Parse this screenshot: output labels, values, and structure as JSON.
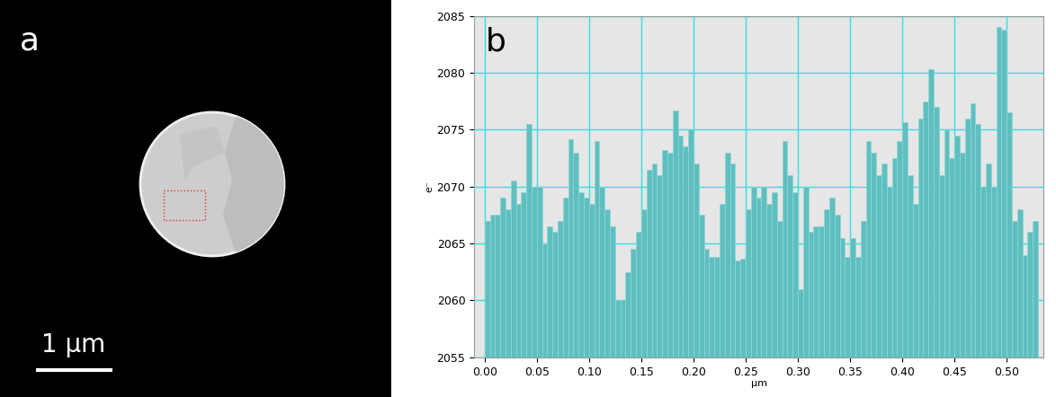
{
  "chart_data": [
    {
      "type": "image",
      "panel_label": "a",
      "scale_bar": "1 µm"
    },
    {
      "type": "histogram",
      "panel_label": "b",
      "x_label": "µm",
      "y_label": "e⁻",
      "bins": [
        0.0,
        0.005,
        0.01,
        0.015,
        0.02,
        0.025,
        0.03,
        0.035,
        0.04,
        0.045,
        0.05,
        0.055,
        0.06,
        0.065,
        0.07,
        0.075,
        0.08,
        0.085,
        0.09,
        0.095,
        0.1,
        0.105,
        0.11,
        0.115,
        0.12,
        0.125,
        0.13,
        0.135,
        0.14,
        0.145,
        0.15,
        0.155,
        0.16,
        0.165,
        0.17,
        0.175,
        0.18,
        0.185,
        0.19,
        0.195,
        0.2,
        0.205,
        0.21,
        0.215,
        0.22,
        0.225,
        0.23,
        0.235,
        0.24,
        0.245,
        0.25,
        0.255,
        0.26,
        0.265,
        0.27,
        0.275,
        0.28,
        0.285,
        0.29,
        0.295,
        0.3,
        0.305,
        0.31,
        0.315,
        0.32,
        0.325,
        0.33,
        0.335,
        0.34,
        0.345,
        0.35,
        0.355,
        0.36,
        0.365,
        0.37,
        0.375,
        0.38,
        0.385,
        0.39,
        0.395,
        0.4,
        0.405,
        0.41,
        0.415,
        0.42,
        0.425,
        0.43,
        0.435,
        0.44,
        0.445,
        0.45,
        0.455,
        0.46,
        0.465,
        0.47,
        0.475,
        0.48,
        0.485,
        0.49,
        0.495,
        0.5,
        0.505,
        0.51,
        0.515,
        0.52,
        0.525,
        0.53
      ],
      "values": [
        2067,
        2067.5,
        2067.5,
        2069,
        2068,
        2070.5,
        2068.5,
        2069.5,
        2075.5,
        2070,
        2070,
        2065,
        2066.5,
        2066,
        2067,
        2069,
        2074.2,
        2073,
        2069.5,
        2069,
        2068.5,
        2074,
        2070,
        2068,
        2066.5,
        2060,
        2060,
        2062.5,
        2064.5,
        2066,
        2068,
        2071.5,
        2072,
        2071,
        2073.2,
        2073,
        2076.7,
        2074.5,
        2073.5,
        2075,
        2072,
        2067.5,
        2064.5,
        2063.8,
        2063.8,
        2068.5,
        2073,
        2072,
        2063.5,
        2063.7,
        2068,
        2070,
        2069,
        2070,
        2068.5,
        2069.5,
        2067,
        2074,
        2071,
        2069.5,
        2061,
        2070,
        2066,
        2066.5,
        2066.5,
        2068,
        2069,
        2067.5,
        2065.5,
        2063.8,
        2065.5,
        2063.8,
        2067,
        2074,
        2073,
        2071,
        2072,
        2070,
        2072.5,
        2074,
        2075.7,
        2071,
        2068.5,
        2076,
        2077.5,
        2080.3,
        2077,
        2071,
        2075,
        2072.5,
        2074.5,
        2073,
        2076,
        2077.3,
        2075.5,
        2070,
        2072,
        2070,
        2084,
        2083.8,
        2076.5,
        2067,
        2068,
        2064,
        2066,
        2067
      ],
      "color": "#5fbfbf",
      "xlim": [
        -0.01,
        0.535
      ],
      "xticks": [
        {
          "value": 0.0,
          "label": "0.00"
        },
        {
          "value": 0.05,
          "label": "0.05"
        },
        {
          "value": 0.1,
          "label": "0.10"
        },
        {
          "value": 0.15,
          "label": "0.15"
        },
        {
          "value": 0.2,
          "label": "0.20"
        },
        {
          "value": 0.25,
          "label": "0.25"
        },
        {
          "value": 0.3,
          "label": "0.30"
        },
        {
          "value": 0.35,
          "label": "0.35"
        },
        {
          "value": 0.4,
          "label": "0.40"
        },
        {
          "value": 0.45,
          "label": "0.45"
        },
        {
          "value": 0.5,
          "label": "0.50"
        }
      ],
      "ylim": [
        2055,
        2085
      ],
      "yticks": [
        2055,
        2060,
        2065,
        2070,
        2075,
        2080,
        2085
      ],
      "grid": true
    }
  ]
}
